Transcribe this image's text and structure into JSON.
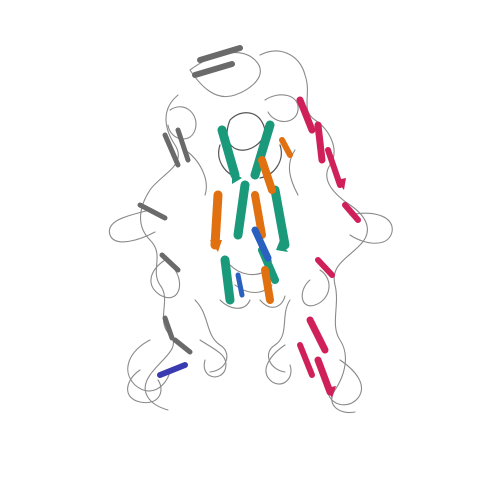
{
  "image": {
    "subject": "protein-ribbon-structure",
    "background": "#ffffff",
    "colors": {
      "coil": "#8a8a8a",
      "green": "#1a9a7a",
      "orange": "#e07010",
      "blue": "#2a60c0",
      "magenta": "#d0205a",
      "gray_strand": "#6a6a6a",
      "indigo": "#3a3ab0"
    }
  }
}
